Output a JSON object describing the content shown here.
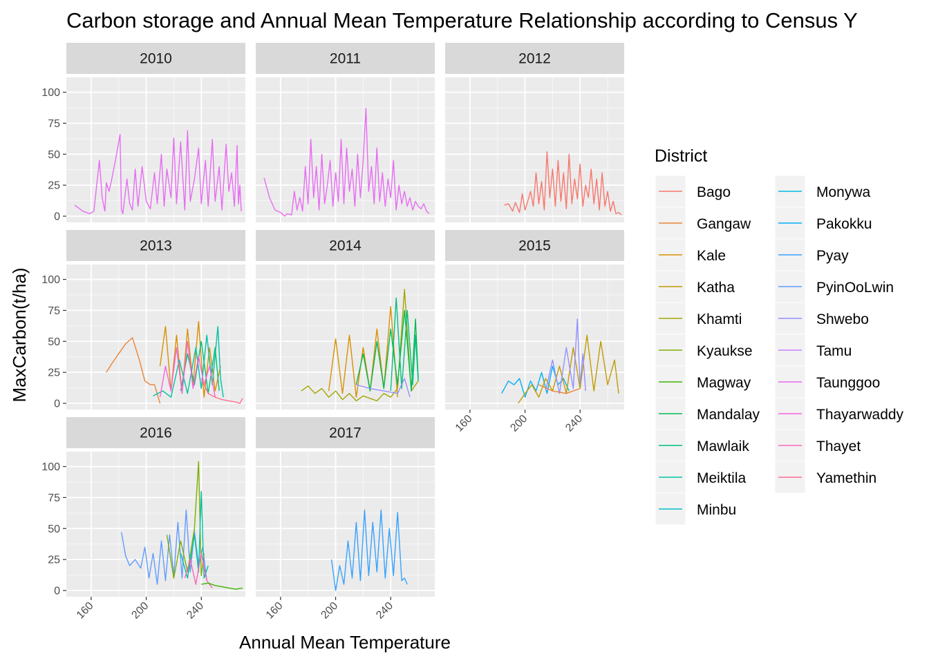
{
  "chart_data": {
    "type": "line",
    "title": "Carbon storage and Annual Mean Temperature Relationship according to Census Y",
    "xlabel": "Annual Mean Temperature",
    "ylabel": "MaxCarbon(t/ha)",
    "xlim": [
      142,
      272
    ],
    "ylim": [
      -5,
      112
    ],
    "x_ticks": [
      160,
      200,
      240
    ],
    "y_ticks": [
      0,
      25,
      50,
      75,
      100
    ],
    "legend_title": "District",
    "legend_position": "right",
    "grid": true,
    "districts": [
      {
        "name": "Bago",
        "color": "#F8766D"
      },
      {
        "name": "Gangaw",
        "color": "#EB8335"
      },
      {
        "name": "Kale",
        "color": "#D89000"
      },
      {
        "name": "Katha",
        "color": "#C09B00"
      },
      {
        "name": "Khamti",
        "color": "#A3A500"
      },
      {
        "name": "Kyaukse",
        "color": "#7CAE00"
      },
      {
        "name": "Magway",
        "color": "#39B600"
      },
      {
        "name": "Mandalay",
        "color": "#00BB4E"
      },
      {
        "name": "Mawlaik",
        "color": "#00BF7D"
      },
      {
        "name": "Meiktila",
        "color": "#00C1A3"
      },
      {
        "name": "Minbu",
        "color": "#00BFC4"
      },
      {
        "name": "Monywa",
        "color": "#00BAE0"
      },
      {
        "name": "Pakokku",
        "color": "#00B0F6"
      },
      {
        "name": "Pyay",
        "color": "#35A2FF"
      },
      {
        "name": "PyinOoLwin",
        "color": "#619CFF"
      },
      {
        "name": "Shwebo",
        "color": "#9590FF"
      },
      {
        "name": "Tamu",
        "color": "#C77CFF"
      },
      {
        "name": "Taunggoo",
        "color": "#E76BF3"
      },
      {
        "name": "Thayarwaddy",
        "color": "#FA62DB"
      },
      {
        "name": "Thayet",
        "color": "#FF62BC"
      },
      {
        "name": "Yamethin",
        "color": "#FF6C91"
      }
    ],
    "panels": [
      {
        "year": "2010",
        "series": [
          {
            "name": "Taunggoo",
            "x": [
              148,
              154,
              159,
              162,
              166,
              168,
              170,
              171,
              173,
              175,
              178,
              181,
              182,
              183,
              186,
              188,
              190,
              192,
              194,
              197,
              200,
              203,
              206,
              208,
              211,
              213,
              215,
              218,
              220,
              222,
              225,
              228,
              230,
              232,
              235,
              238,
              240,
              243,
              245,
              248,
              250,
              253,
              255,
              258,
              260,
              262,
              264,
              266,
              267,
              268,
              269
            ],
            "y": [
              9,
              4,
              2,
              4,
              45,
              15,
              4,
              27,
              20,
              30,
              47,
              66,
              5,
              2,
              30,
              10,
              5,
              38,
              8,
              40,
              12,
              6,
              35,
              10,
              50,
              8,
              38,
              15,
              63,
              10,
              60,
              5,
              69,
              12,
              30,
              55,
              10,
              45,
              8,
              62,
              12,
              40,
              5,
              58,
              20,
              35,
              8,
              57,
              10,
              25,
              4
            ]
          }
        ]
      },
      {
        "year": "2011",
        "series": [
          {
            "name": "Taunggoo",
            "x": [
              148,
              152,
              156,
              160,
              163,
              165,
              168,
              170,
              172,
              174,
              176,
              178,
              180,
              182,
              184,
              186,
              188,
              190,
              192,
              194,
              196,
              198,
              200,
              202,
              204,
              206,
              208,
              210,
              212,
              214,
              216,
              218,
              220,
              222,
              224,
              226,
              228,
              230,
              232,
              234,
              236,
              238,
              240,
              242,
              244,
              246,
              248,
              250,
              252,
              254,
              256,
              258,
              260,
              262,
              264,
              266,
              268
            ],
            "y": [
              31,
              15,
              5,
              3,
              0,
              2,
              1,
              20,
              5,
              15,
              4,
              40,
              10,
              62,
              15,
              40,
              5,
              50,
              10,
              25,
              45,
              8,
              35,
              12,
              62,
              10,
              55,
              20,
              38,
              8,
              50,
              15,
              45,
              87,
              20,
              40,
              10,
              55,
              12,
              35,
              8,
              30,
              15,
              45,
              5,
              25,
              10,
              20,
              8,
              15,
              5,
              12,
              8,
              6,
              10,
              4,
              2
            ]
          }
        ]
      },
      {
        "year": "2012",
        "series": [
          {
            "name": "Bago",
            "x": [
              185,
              188,
              191,
              193,
              196,
              198,
              200,
              202,
              204,
              206,
              208,
              210,
              212,
              214,
              216,
              218,
              220,
              222,
              224,
              226,
              228,
              230,
              232,
              234,
              236,
              238,
              240,
              242,
              244,
              246,
              248,
              250,
              252,
              254,
              256,
              258,
              260,
              262,
              264,
              266,
              268,
              270
            ],
            "y": [
              9,
              10,
              4,
              11,
              3,
              18,
              5,
              12,
              20,
              8,
              35,
              10,
              28,
              5,
              52,
              15,
              38,
              8,
              45,
              12,
              35,
              6,
              50,
              10,
              30,
              14,
              42,
              8,
              25,
              15,
              38,
              10,
              30,
              5,
              35,
              8,
              20,
              4,
              12,
              2,
              3,
              1
            ]
          }
        ]
      },
      {
        "year": "2013",
        "series": [
          {
            "name": "Gangaw",
            "x": [
              171,
              175,
              180,
              185,
              190,
              195,
              199,
              203,
              206,
              210
            ],
            "y": [
              25,
              32,
              40,
              48,
              53,
              35,
              18,
              15,
              15,
              0
            ]
          },
          {
            "name": "Kale",
            "x": [
              210,
              214,
              218,
              222,
              226,
              230,
              234,
              238,
              242,
              246,
              250,
              254
            ],
            "y": [
              30,
              62,
              10,
              55,
              8,
              60,
              15,
              66,
              5,
              45,
              10,
              30
            ]
          },
          {
            "name": "Meiktila",
            "x": [
              205,
              212,
              218,
              224,
              230,
              236,
              240,
              244,
              248,
              252,
              254,
              256
            ],
            "y": [
              6,
              10,
              5,
              35,
              8,
              45,
              12,
              55,
              15,
              62,
              20,
              5
            ]
          },
          {
            "name": "Mawlaik",
            "x": [
              225,
              230,
              235,
              240,
              245,
              250,
              253
            ],
            "y": [
              10,
              40,
              15,
              50,
              8,
              45,
              10
            ]
          },
          {
            "name": "Thayarwaddy",
            "x": [
              210,
              214,
              218,
              222,
              226,
              230,
              234,
              238,
              242,
              246,
              250
            ],
            "y": [
              5,
              30,
              10,
              45,
              8,
              50,
              12,
              38,
              15,
              30,
              5
            ]
          },
          {
            "name": "Yamethin",
            "x": [
              240,
              245,
              250,
              255,
              260,
              265,
              268,
              270
            ],
            "y": [
              20,
              8,
              5,
              3,
              2,
              1,
              0,
              4
            ]
          }
        ]
      },
      {
        "year": "2014",
        "series": [
          {
            "name": "Khamti",
            "x": [
              175,
              180,
              185,
              190,
              195,
              200,
              205,
              210,
              215,
              220,
              225,
              230,
              235,
              240,
              245,
              250,
              255,
              260
            ],
            "y": [
              10,
              14,
              8,
              12,
              5,
              10,
              3,
              8,
              2,
              6,
              4,
              2,
              8,
              5,
              12,
              92,
              10,
              18
            ]
          },
          {
            "name": "Kale",
            "x": [
              195,
              200,
              205,
              210,
              215,
              220,
              225,
              230,
              235,
              240,
              245
            ],
            "y": [
              10,
              52,
              8,
              55,
              5,
              45,
              10,
              60,
              12,
              78,
              5
            ]
          },
          {
            "name": "Mandalay",
            "x": [
              215,
              220,
              225,
              230,
              235,
              240,
              245,
              250,
              255,
              258,
              260
            ],
            "y": [
              15,
              40,
              10,
              50,
              12,
              60,
              15,
              75,
              10,
              68,
              20
            ]
          },
          {
            "name": "Mawlaik",
            "x": [
              240,
              244,
              248,
              252,
              256,
              258,
              260
            ],
            "y": [
              10,
              85,
              12,
              75,
              15,
              55,
              18
            ]
          },
          {
            "name": "Shwebo",
            "x": [
              215,
              225,
              235,
              245,
              250,
              254
            ],
            "y": [
              15,
              12,
              10,
              8,
              20,
              5
            ]
          }
        ]
      },
      {
        "year": "2015",
        "series": [
          {
            "name": "Pakokku",
            "x": [
              183,
              188,
              192,
              196,
              200,
              204,
              208,
              212,
              216,
              220,
              224,
              228,
              232
            ],
            "y": [
              8,
              18,
              15,
              20,
              5,
              18,
              10,
              25,
              8,
              30,
              15,
              20,
              10
            ]
          },
          {
            "name": "Katha",
            "x": [
              195,
              200,
              205,
              210,
              215,
              220,
              225,
              230,
              235,
              240,
              245,
              250,
              255,
              260,
              265,
              268
            ],
            "y": [
              0,
              8,
              15,
              5,
              20,
              10,
              30,
              8,
              45,
              12,
              55,
              10,
              50,
              15,
              35,
              8
            ]
          },
          {
            "name": "Shwebo",
            "x": [
              215,
              220,
              225,
              230,
              235,
              238,
              240,
              242,
              244
            ],
            "y": [
              10,
              35,
              8,
              45,
              12,
              68,
              15,
              40,
              10
            ]
          },
          {
            "name": "Gangaw",
            "x": [
              210,
              220,
              230,
              240
            ],
            "y": [
              15,
              10,
              8,
              12
            ]
          }
        ]
      },
      {
        "year": "2016",
        "series": [
          {
            "name": "PyinOoLwin",
            "x": [
              182,
              185,
              188,
              192,
              196,
              199,
              202,
              205,
              208,
              211,
              214,
              217,
              220,
              223,
              226,
              229,
              232,
              235,
              238,
              241,
              244
            ],
            "y": [
              47,
              28,
              20,
              25,
              18,
              35,
              10,
              30,
              5,
              40,
              8,
              45,
              12,
              55,
              10,
              65,
              15,
              48,
              20,
              35,
              8
            ]
          },
          {
            "name": "Kyaukse",
            "x": [
              215,
              220,
              225,
              230,
              235,
              238,
              240,
              242
            ],
            "y": [
              45,
              10,
              40,
              15,
              50,
              104,
              12,
              30
            ]
          },
          {
            "name": "Meiktila",
            "x": [
              225,
              230,
              235,
              238,
              240,
              242,
              245
            ],
            "y": [
              30,
              10,
              45,
              15,
              80,
              10,
              20
            ]
          },
          {
            "name": "Thayet",
            "x": [
              228,
              232,
              236,
              240,
              244,
              248
            ],
            "y": [
              10,
              25,
              5,
              30,
              8,
              2
            ]
          },
          {
            "name": "Magway",
            "x": [
              240,
              245,
              250,
              255,
              260,
              265,
              270
            ],
            "y": [
              5,
              6,
              4,
              3,
              2,
              1,
              2
            ]
          }
        ]
      },
      {
        "year": "2017",
        "series": [
          {
            "name": "Pyay",
            "x": [
              197,
              200,
              203,
              206,
              209,
              212,
              215,
              218,
              221,
              224,
              227,
              230,
              233,
              236,
              239,
              242,
              245,
              248,
              250,
              252
            ],
            "y": [
              25,
              0,
              20,
              5,
              40,
              10,
              55,
              8,
              65,
              12,
              55,
              15,
              65,
              10,
              50,
              12,
              63,
              8,
              10,
              5
            ]
          }
        ]
      }
    ]
  }
}
